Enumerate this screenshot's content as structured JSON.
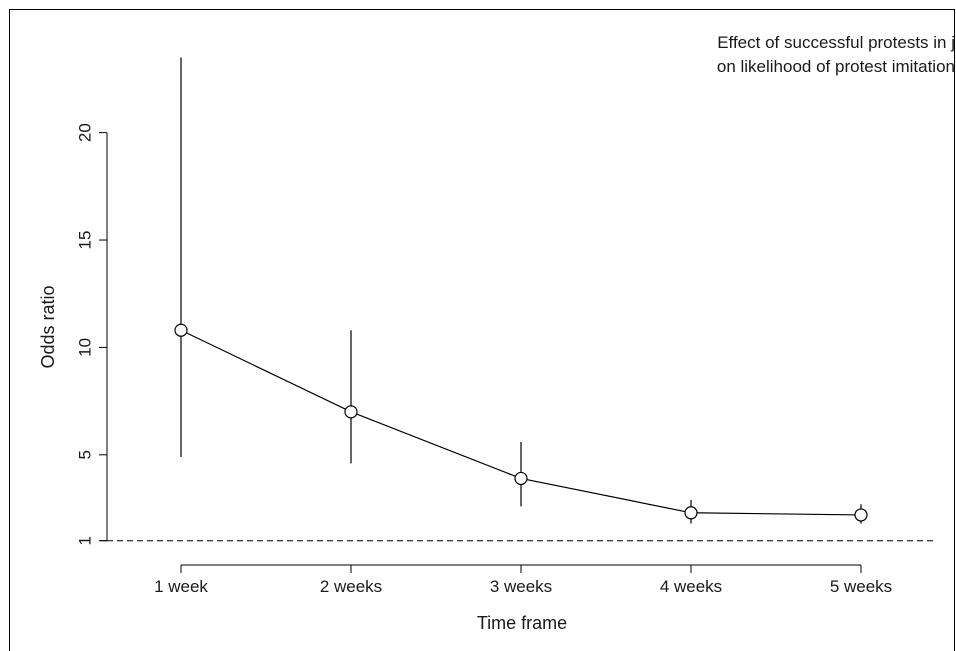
{
  "chart_data": {
    "type": "line",
    "categories": [
      "1 week",
      "2 weeks",
      "3 weeks",
      "4 weeks",
      "5 weeks"
    ],
    "series": [
      {
        "values": [
          10.8,
          7.0,
          3.9,
          2.3,
          2.2
        ],
        "ci_lower": [
          4.9,
          4.6,
          2.6,
          1.8,
          1.8
        ],
        "ci_upper": [
          23.5,
          10.8,
          5.6,
          2.9,
          2.7
        ]
      }
    ],
    "reference_line": 1,
    "xlabel": "Time frame",
    "ylabel": "Odds ratio",
    "yticks": [
      1,
      5,
      10,
      15,
      20
    ],
    "ylim": [
      0.8,
      24.5
    ],
    "annotation_lines": [
      "Effect of successful protests in j",
      "on likelihood of protest imitation"
    ],
    "grid": false
  }
}
